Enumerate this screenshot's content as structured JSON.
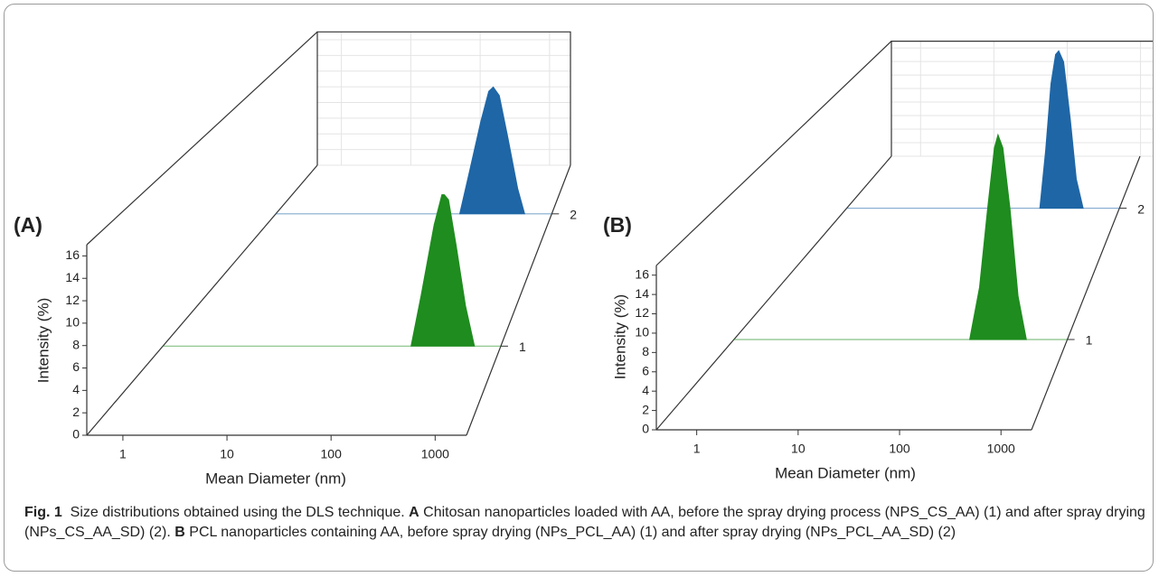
{
  "chart_data": [
    {
      "type": "waterfall",
      "panel_label": "(A)",
      "ylabel": "Intensity (%)",
      "xlabel": "Mean Diameter (nm)",
      "xscale": "log",
      "xlim": [
        0.45,
        2000
      ],
      "xticks": [
        1,
        10,
        100,
        1000
      ],
      "ylim": [
        0,
        17
      ],
      "yticks": [
        0,
        2,
        4,
        6,
        8,
        10,
        12,
        14,
        16
      ],
      "series": [
        {
          "name": "1",
          "color": "#1e8c1e",
          "x": [
            480,
            600,
            800,
            950,
            1000,
            1100,
            1300,
            1600,
            1950
          ],
          "values": [
            0,
            5,
            12,
            15,
            15,
            14.5,
            10,
            4,
            0
          ]
        },
        {
          "name": "2",
          "color": "#1f66a6",
          "x": [
            500,
            620,
            800,
            950,
            1050,
            1200,
            1450,
            1800,
            2100
          ],
          "values": [
            0,
            5,
            11,
            14.5,
            15,
            14,
            9,
            3,
            0
          ]
        }
      ]
    },
    {
      "type": "waterfall",
      "panel_label": "(B)",
      "ylabel": "Intensity (%)",
      "xlabel": "Mean Diameter (nm)",
      "xscale": "log",
      "xlim": [
        0.4,
        2000
      ],
      "xticks": [
        1,
        10,
        100,
        1000
      ],
      "ylim": [
        0,
        17
      ],
      "yticks": [
        0,
        2,
        4,
        6,
        8,
        10,
        12,
        14,
        16
      ],
      "series": [
        {
          "name": "1",
          "color": "#1e8c1e",
          "x": [
            400,
            500,
            600,
            700,
            760,
            850,
            1000,
            1200,
            1450
          ],
          "values": [
            0,
            6,
            15,
            22,
            23.5,
            22,
            15,
            5,
            0
          ]
        },
        {
          "name": "2",
          "color": "#1f66a6",
          "x": [
            700,
            800,
            900,
            1000,
            1075,
            1200,
            1400,
            1600,
            1870
          ],
          "values": [
            0,
            8,
            17,
            21,
            21.5,
            20,
            12,
            4,
            0
          ]
        }
      ]
    }
  ],
  "caption": {
    "label": "Fig. 1",
    "intro": "Size distributions obtained using the DLS technique.",
    "part_a_label": "A",
    "part_a_text": "Chitosan nanoparticles loaded with AA, before the spray drying process (NPS_CS_AA) (1) and after spray drying (NPs_CS_AA_SD) (2).",
    "part_b_label": "B",
    "part_b_text": "PCL nanoparticles containing AA, before spray drying (NPs_PCL_AA) (1) and after spray drying (NPs_PCL_AA_SD) (2)"
  }
}
